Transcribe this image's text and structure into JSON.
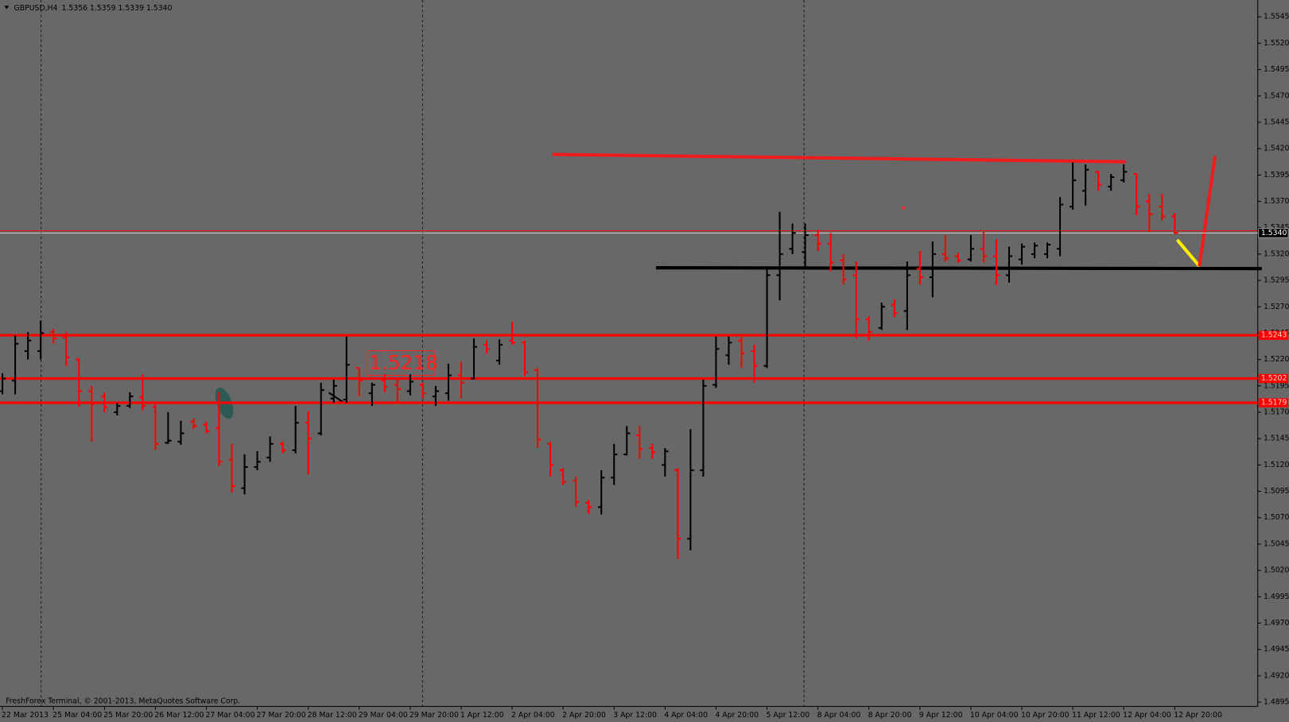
{
  "chart_data": {
    "type": "ohlc",
    "title": "GBPUSD,H4",
    "subtitle": "1.5356 1.5359 1.5339 1.5340",
    "footer": "FreshForex Terminal, © 2001-2013, MetaQuotes Software Corp.",
    "annotations": [
      "1.5218"
    ],
    "up_color": "#000000",
    "down_color": "#ff0000",
    "categories": [
      "22 Mar 2013",
      null,
      null,
      null,
      "25 Mar 04:00",
      null,
      null,
      null,
      "25 Mar 20:00",
      null,
      null,
      null,
      "26 Mar 12:00",
      null,
      null,
      null,
      "27 Mar 04:00",
      null,
      null,
      null,
      "27 Mar 20:00",
      null,
      null,
      null,
      "28 Mar 12:00",
      null,
      null,
      null,
      "29 Mar 04:00",
      null,
      null,
      null,
      "29 Mar 20:00",
      null,
      null,
      null,
      "1 Apr 12:00",
      null,
      null,
      null,
      "2 Apr 04:00",
      null,
      null,
      null,
      "2 Apr 20:00",
      null,
      null,
      null,
      "3 Apr 12:00",
      null,
      null,
      null,
      "4 Apr 04:00",
      null,
      null,
      null,
      "4 Apr 20:00",
      null,
      null,
      null,
      "5 Apr 12:00",
      null,
      null,
      null,
      "8 Apr 04:00",
      null,
      null,
      null,
      "8 Apr 20:00",
      null,
      null,
      null,
      "9 Apr 12:00",
      null,
      null,
      null,
      "10 Apr 04:00",
      null,
      null,
      null,
      "10 Apr 20:00",
      null,
      null,
      null,
      "11 Apr 12:00",
      null,
      null,
      null,
      "12 Apr 04:00",
      null,
      null,
      null,
      "12 Apr 20:00"
    ],
    "open": [
      1.519,
      1.52,
      1.5228,
      1.5228,
      1.5246,
      1.5241,
      1.522,
      1.519,
      1.5185,
      1.517,
      1.5176,
      1.5184,
      1.5175,
      1.5141,
      1.5142,
      1.5161,
      1.5158,
      1.5155,
      1.5125,
      1.5098,
      1.5118,
      1.5127,
      1.514,
      1.5134,
      1.516,
      1.515,
      1.5183,
      1.5182,
      1.5212,
      1.5188,
      1.52,
      1.5196,
      1.519,
      1.5196,
      1.5185,
      1.5188,
      1.5205,
      1.5202,
      1.5234,
      1.5219,
      1.5238,
      1.5236,
      1.521,
      1.514,
      1.5115,
      1.5105,
      1.5084,
      1.508,
      1.5108,
      1.513,
      1.5148,
      1.5136,
      1.512,
      1.5115,
      1.505,
      1.5115,
      1.5196,
      1.5224,
      1.5238,
      1.5228,
      1.5214,
      1.53,
      1.5325,
      1.5322,
      1.5338,
      1.533,
      1.5314,
      1.53,
      1.5258,
      1.525,
      1.5272,
      1.5266,
      1.5306,
      1.5298,
      1.532,
      1.5318,
      1.5315,
      1.5325,
      1.5318,
      1.53,
      1.5315,
      1.532,
      1.532,
      1.5325,
      1.5365,
      1.538,
      1.5398,
      1.5384,
      1.539,
      1.5396,
      1.537,
      1.5365,
      1.5356
    ],
    "high": [
      1.5207,
      1.5243,
      1.5246,
      1.5257,
      1.5249,
      1.5246,
      1.5221,
      1.5195,
      1.5189,
      1.5179,
      1.5189,
      1.5206,
      1.5178,
      1.517,
      1.5162,
      1.5164,
      1.5161,
      1.5189,
      1.514,
      1.513,
      1.5133,
      1.5147,
      1.5142,
      1.5176,
      1.5171,
      1.5198,
      1.5201,
      1.5242,
      1.5212,
      1.5198,
      1.5206,
      1.5203,
      1.5206,
      1.5198,
      1.5195,
      1.5216,
      1.5218,
      1.524,
      1.5238,
      1.5239,
      1.5256,
      1.5238,
      1.5212,
      1.5142,
      1.5117,
      1.5109,
      1.5087,
      1.5115,
      1.514,
      1.5157,
      1.5157,
      1.514,
      1.5136,
      1.5117,
      1.5154,
      1.5201,
      1.5242,
      1.5242,
      1.5242,
      1.5234,
      1.5308,
      1.536,
      1.5349,
      1.5349,
      1.5343,
      1.534,
      1.532,
      1.5313,
      1.5261,
      1.5274,
      1.5277,
      1.5313,
      1.5323,
      1.5332,
      1.5338,
      1.5321,
      1.5338,
      1.5341,
      1.5334,
      1.5327,
      1.533,
      1.5331,
      1.5331,
      1.5374,
      1.5407,
      1.5405,
      1.5399,
      1.5396,
      1.5405,
      1.5396,
      1.5377,
      1.5377,
      1.5359
    ],
    "low": [
      1.5187,
      1.5187,
      1.522,
      1.522,
      1.5235,
      1.5214,
      1.5175,
      1.5142,
      1.517,
      1.5167,
      1.5174,
      1.5172,
      1.5134,
      1.514,
      1.5139,
      1.5154,
      1.515,
      1.5119,
      1.5094,
      1.5092,
      1.5115,
      1.5123,
      1.5131,
      1.5131,
      1.5111,
      1.5148,
      1.5179,
      1.5179,
      1.5185,
      1.5176,
      1.5189,
      1.5179,
      1.5186,
      1.5183,
      1.5176,
      1.5181,
      1.5183,
      1.5201,
      1.5226,
      1.5215,
      1.5234,
      1.5204,
      1.5136,
      1.5109,
      1.5101,
      1.508,
      1.5074,
      1.5073,
      1.5101,
      1.5129,
      1.5126,
      1.5126,
      1.5109,
      1.5031,
      1.5039,
      1.5109,
      1.5193,
      1.5215,
      1.5212,
      1.5198,
      1.5212,
      1.5276,
      1.532,
      1.5307,
      1.5323,
      1.5304,
      1.5291,
      1.524,
      1.5238,
      1.5248,
      1.526,
      1.5248,
      1.5291,
      1.5279,
      1.5313,
      1.5312,
      1.5313,
      1.5312,
      1.5291,
      1.5293,
      1.531,
      1.5316,
      1.5316,
      1.5318,
      1.5362,
      1.5366,
      1.538,
      1.538,
      1.5388,
      1.5357,
      1.5341,
      1.5352,
      1.5339
    ],
    "close": [
      1.5202,
      1.5235,
      1.5238,
      1.5245,
      1.524,
      1.5222,
      1.519,
      1.5178,
      1.5175,
      1.5176,
      1.5185,
      1.5176,
      1.514,
      1.5143,
      1.515,
      1.5157,
      1.5152,
      1.5123,
      1.51,
      1.5118,
      1.5123,
      1.514,
      1.5134,
      1.516,
      1.5145,
      1.5191,
      1.5195,
      1.5215,
      1.52,
      1.5196,
      1.5194,
      1.5192,
      1.5199,
      1.5188,
      1.519,
      1.5205,
      1.5198,
      1.5232,
      1.523,
      1.5234,
      1.5236,
      1.5208,
      1.5144,
      1.512,
      1.5104,
      1.5085,
      1.508,
      1.5108,
      1.513,
      1.515,
      1.5135,
      1.5132,
      1.5133,
      1.505,
      1.5115,
      1.5195,
      1.523,
      1.5236,
      1.5226,
      1.5214,
      1.53,
      1.532,
      1.534,
      1.5338,
      1.533,
      1.5312,
      1.5296,
      1.5258,
      1.5246,
      1.527,
      1.5264,
      1.53,
      1.5298,
      1.532,
      1.5316,
      1.5314,
      1.5325,
      1.5318,
      1.53,
      1.5318,
      1.5327,
      1.5328,
      1.5329,
      1.5367,
      1.539,
      1.54,
      1.5386,
      1.5393,
      1.5398,
      1.5365,
      1.5358,
      1.5356,
      1.534
    ],
    "ylim": [
      1.4891,
      1.5561
    ],
    "yticks": [
      1.5545,
      {
        "value": 1.552,
        "label": "1.5520"
      },
      1.5495,
      {
        "value": 1.547,
        "label": "1.5470"
      },
      1.5445,
      {
        "value": 1.542,
        "label": "1.5420"
      },
      1.5395,
      {
        "value": 1.537,
        "label": "1.5370"
      },
      1.5345,
      {
        "value": 1.532,
        "label": "1.5320"
      },
      1.5295,
      {
        "value": 1.527,
        "label": "1.5270"
      },
      1.5245,
      {
        "value": 1.522,
        "label": "1.5220"
      },
      1.5195,
      {
        "value": 1.517,
        "label": "1.5170"
      },
      1.5145,
      {
        "value": 1.512,
        "label": "1.5120"
      },
      1.5095,
      {
        "value": 1.507,
        "label": "1.5070"
      },
      1.5045,
      {
        "value": 1.502,
        "label": "1.5020"
      },
      1.4995,
      {
        "value": 1.497,
        "label": "1.4970"
      },
      1.4945,
      {
        "value": 1.492,
        "label": "1.4920"
      },
      1.4895
    ],
    "bid": {
      "value": 1.534,
      "label": "1.5340",
      "color": "#000000"
    },
    "levels": [
      {
        "value": 1.5243,
        "label": "1.5243",
        "color": "#ff0000"
      },
      {
        "value": 1.5202,
        "label": "1.5202",
        "color": "#ff0000"
      },
      {
        "value": 1.5179,
        "label": "1.5179",
        "color": "#ff0000"
      }
    ]
  }
}
